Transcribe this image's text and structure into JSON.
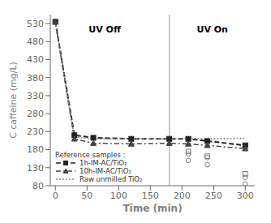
{
  "chart_data": {
    "type": "line",
    "title": "",
    "xlabel": "Time (min)",
    "ylabel": "C caffeine (mg/L)",
    "xlim": [
      -8,
      315
    ],
    "ylim": [
      80,
      555
    ],
    "xticks": [
      0,
      50,
      100,
      150,
      200,
      250,
      300
    ],
    "yticks": [
      80,
      130,
      180,
      230,
      280,
      330,
      380,
      430,
      480,
      530
    ],
    "grid": false,
    "legend": "lower left",
    "legend_title": "Reference samples :",
    "series": [
      {
        "name": "1h-IM-AC/TiO₂",
        "type": "line",
        "color": "#222222",
        "line_style": "dashed",
        "marker": "square",
        "x": [
          0,
          30,
          60,
          120,
          180,
          210,
          240,
          300
        ],
        "values": [
          535,
          220,
          213,
          210,
          210,
          210,
          204,
          192
        ]
      },
      {
        "name": "10h-IM-AC/TiO₂",
        "type": "line",
        "color": "#444444",
        "line_style": "dashdot",
        "marker": "triangle",
        "x": [
          0,
          30,
          60,
          120,
          180,
          210,
          240,
          300
        ],
        "values": [
          535,
          210,
          198,
          196,
          198,
          196,
          192,
          183
        ]
      },
      {
        "name": "Raw unmilled TiO₂",
        "type": "line",
        "color": "#888888",
        "line_style": "dotted",
        "marker": "none",
        "x": [
          0,
          30,
          60,
          120,
          180,
          210,
          240,
          300
        ],
        "values": [
          535,
          215,
          210,
          210,
          210,
          212,
          210,
          212
        ]
      },
      {
        "type": "scatter",
        "color": "#777777",
        "marker": "circle",
        "x": [
          210,
          210,
          240,
          240,
          300,
          300
        ],
        "values": [
          168,
          150,
          158,
          138,
          103,
          85
        ]
      },
      {
        "type": "scatter",
        "color": "#777777",
        "marker": "square",
        "x": [
          210,
          240,
          300
        ],
        "values": [
          175,
          162,
          113
        ]
      }
    ],
    "reference_lines": [
      {
        "x": 180,
        "color": "#999999"
      }
    ],
    "annotations": [
      {
        "text": "UV Off",
        "x": 78,
        "y": 515
      },
      {
        "text": "UV On",
        "x": 248,
        "y": 515
      }
    ]
  }
}
